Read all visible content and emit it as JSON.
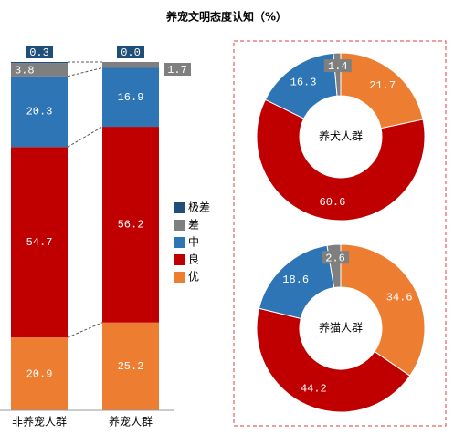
{
  "chart_data": [
    {
      "type": "stacked-bar",
      "title": "养宠文明态度认知（%）",
      "categories": [
        "非养宠人群",
        "养宠人群"
      ],
      "series": [
        {
          "name": "优",
          "color": "#ed7d31",
          "values": [
            20.9,
            25.2
          ]
        },
        {
          "name": "良",
          "color": "#c00000",
          "values": [
            54.7,
            56.2
          ]
        },
        {
          "name": "中",
          "color": "#2e75b6",
          "values": [
            20.3,
            16.9
          ]
        },
        {
          "name": "差",
          "color": "#7f7f7f",
          "values": [
            3.8,
            1.7
          ]
        },
        {
          "name": "极差",
          "color": "#1f4e79",
          "values": [
            0.3,
            0.0
          ],
          "value_labels": [
            "0.3",
            "0.0"
          ]
        }
      ]
    },
    {
      "type": "donut",
      "center_label": "养犬人群",
      "categories": [
        "优",
        "良",
        "中",
        "差"
      ],
      "values": [
        21.7,
        60.6,
        16.3,
        1.4
      ],
      "colors": [
        "#ed7d31",
        "#c00000",
        "#2e75b6",
        "#7f7f7f"
      ]
    },
    {
      "type": "donut",
      "center_label": "养猫人群",
      "categories": [
        "优",
        "良",
        "中",
        "差"
      ],
      "values": [
        34.6,
        44.2,
        18.6,
        2.6
      ],
      "colors": [
        "#ed7d31",
        "#c00000",
        "#2e75b6",
        "#7f7f7f"
      ]
    }
  ]
}
